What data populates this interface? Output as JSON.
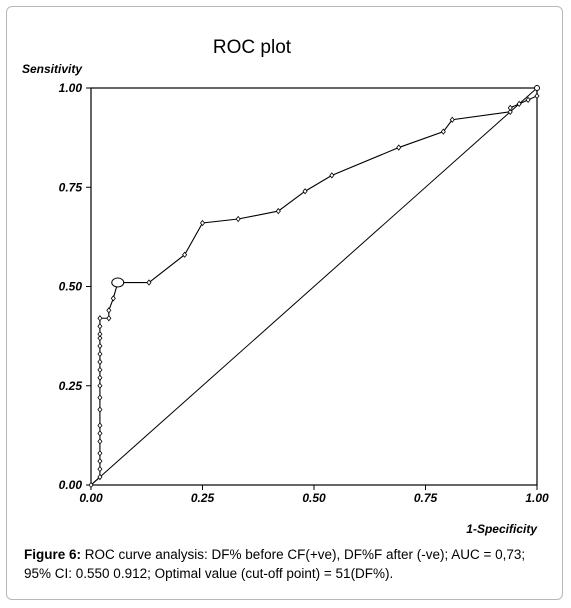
{
  "chart_data": {
    "type": "line",
    "title": "ROC plot",
    "ylabel": "Sensitivity",
    "xlabel": "1-Specificity",
    "xlim": [
      0,
      1
    ],
    "ylim": [
      0,
      1
    ],
    "x_ticks": [
      "0.00",
      "0.25",
      "0.50",
      "0.75",
      "1.00"
    ],
    "y_ticks": [
      "0.00",
      "0.25",
      "0.50",
      "0.75",
      "1.00"
    ],
    "grid": false,
    "series": [
      {
        "values": [
          [
            0,
            0
          ],
          [
            0.02,
            0.02
          ],
          [
            0.02,
            0.04
          ],
          [
            0.02,
            0.06
          ],
          [
            0.02,
            0.08
          ],
          [
            0.02,
            0.11
          ],
          [
            0.02,
            0.13
          ],
          [
            0.02,
            0.15
          ],
          [
            0.02,
            0.19
          ],
          [
            0.02,
            0.22
          ],
          [
            0.02,
            0.25
          ],
          [
            0.02,
            0.27
          ],
          [
            0.02,
            0.29
          ],
          [
            0.02,
            0.31
          ],
          [
            0.02,
            0.33
          ],
          [
            0.02,
            0.35
          ],
          [
            0.02,
            0.37
          ],
          [
            0.02,
            0.38
          ],
          [
            0.02,
            0.4
          ],
          [
            0.02,
            0.42
          ],
          [
            0.04,
            0.42
          ],
          [
            0.04,
            0.44
          ],
          [
            0.05,
            0.47
          ],
          [
            0.06,
            0.51
          ],
          [
            0.13,
            0.51
          ],
          [
            0.21,
            0.58
          ],
          [
            0.25,
            0.66
          ],
          [
            0.33,
            0.67
          ],
          [
            0.42,
            0.69
          ],
          [
            0.48,
            0.74
          ],
          [
            0.54,
            0.78
          ],
          [
            0.69,
            0.85
          ],
          [
            0.79,
            0.89
          ],
          [
            0.81,
            0.92
          ],
          [
            0.94,
            0.94
          ],
          [
            0.94,
            0.95
          ],
          [
            0.96,
            0.96
          ],
          [
            0.98,
            0.97
          ],
          [
            1.0,
            0.98
          ],
          [
            1.0,
            1.0
          ]
        ]
      },
      {
        "style": "reference-diagonal",
        "values": [
          [
            0,
            0
          ],
          [
            1,
            1
          ]
        ]
      }
    ],
    "optimal_point": [
      0.06,
      0.51
    ]
  },
  "caption": {
    "label": "Figure 6:",
    "text": " ROC curve analysis: DF% before CF(+ve), DF%F after (-ve); AUC = 0,73; 95% CI: 0.550 0.912; Optimal value (cut-off point) = 51(DF%)."
  }
}
